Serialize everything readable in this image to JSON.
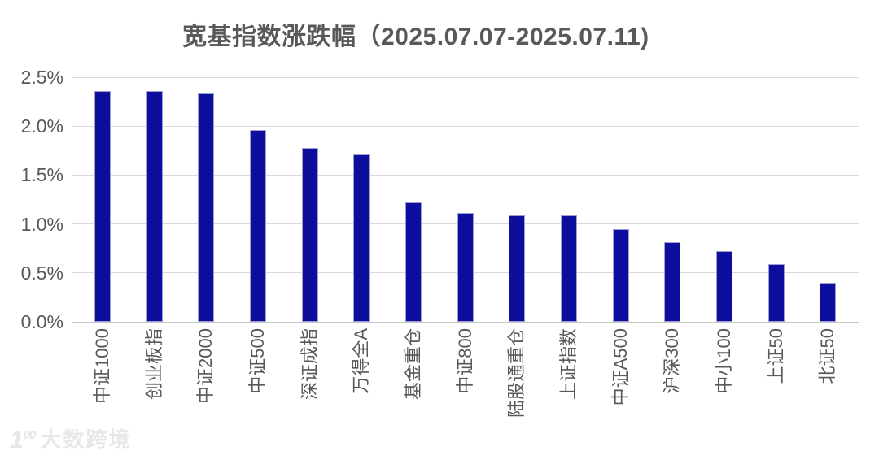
{
  "title": "宽基指数涨跌幅（2025.07.07-2025.07.11)",
  "watermark": {
    "logo": "100",
    "text": "大数跨境"
  },
  "chart_data": {
    "type": "bar",
    "title": "宽基指数涨跌幅（2025.07.07-2025.07.11)",
    "categories": [
      "中证1000",
      "创业板指",
      "中证2000",
      "中证500",
      "深证成指",
      "万得全A",
      "基金重仓",
      "中证800",
      "陆股通重仓",
      "上证指数",
      "中证A500",
      "沪深300",
      "中小100",
      "上证50",
      "北证50"
    ],
    "values": [
      2.36,
      2.36,
      2.33,
      1.96,
      1.78,
      1.71,
      1.22,
      1.11,
      1.09,
      1.09,
      0.95,
      0.81,
      0.72,
      0.59,
      0.4
    ],
    "unit": "%",
    "xlabel": "",
    "ylabel": "",
    "ylim": [
      0,
      2.5
    ],
    "y_ticks": [
      "0.0%",
      "0.5%",
      "1.0%",
      "1.5%",
      "2.0%",
      "2.5%"
    ],
    "grid": true,
    "legend": "none",
    "bar_color": "#0d0d9e",
    "gridline_color": "#d9d9d9",
    "axis_text_color": "#595959",
    "title_color": "#595959"
  }
}
